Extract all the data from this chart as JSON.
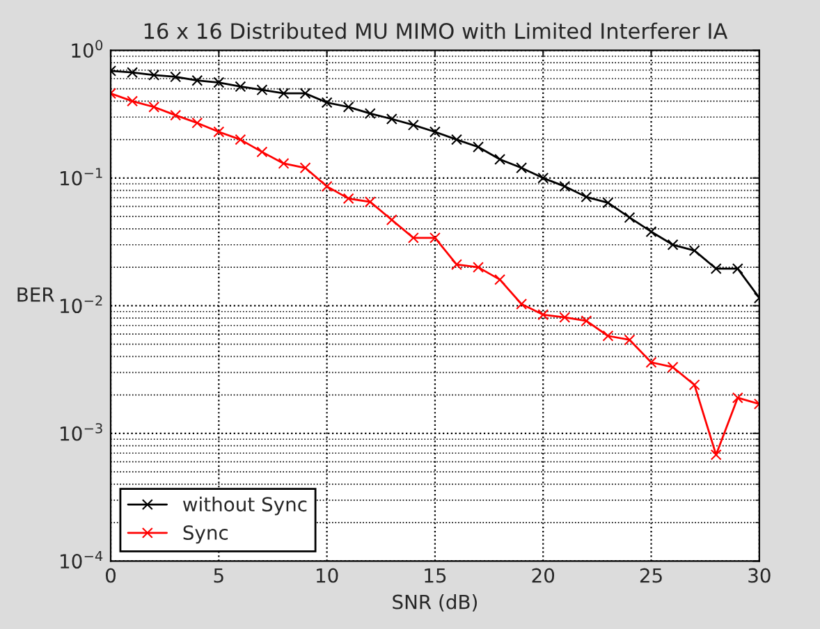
{
  "chart_data": {
    "type": "line",
    "title": "16 x 16 Distributed MU MIMO with Limited Interferer IA",
    "xlabel": "SNR (dB)",
    "ylabel": "BER",
    "log": "y",
    "grid": true,
    "legend": "bottom left",
    "marker": "cross",
    "line_style": "solid",
    "x": [
      0,
      1,
      2,
      3,
      4,
      5,
      6,
      7,
      8,
      9,
      10,
      11,
      12,
      13,
      14,
      15,
      16,
      17,
      18,
      19,
      20,
      21,
      22,
      23,
      24,
      25,
      26,
      27,
      28,
      29,
      30
    ],
    "xlim": [
      0,
      30
    ],
    "xticks": [
      0,
      5,
      10,
      15,
      20,
      25,
      30
    ],
    "ylim": [
      0.0001,
      1
    ],
    "yticks": [
      {
        "value": 0.0001,
        "label": "10$^{−4}$"
      },
      {
        "value": 0.001,
        "label": "10$^{−3}$"
      },
      {
        "value": 0.01,
        "label": "10$^{−2}$"
      },
      {
        "value": 0.1,
        "label": "10$^{−1}$"
      },
      {
        "value": 1,
        "label": "10$^{0}$"
      }
    ],
    "series": [
      {
        "name": "without Sync",
        "color": "#000000",
        "values": [
          0.69,
          0.67,
          0.64,
          0.62,
          0.58,
          0.56,
          0.52,
          0.49,
          0.46,
          0.46,
          0.39,
          0.36,
          0.32,
          0.29,
          0.26,
          0.23,
          0.2,
          0.175,
          0.14,
          0.12,
          0.1,
          0.086,
          0.071,
          0.064,
          0.049,
          0.038,
          0.03,
          0.027,
          0.0195,
          0.0195,
          0.0115
        ]
      },
      {
        "name": "Sync",
        "color": "#ff0000",
        "values": [
          0.46,
          0.4,
          0.36,
          0.31,
          0.27,
          0.23,
          0.2,
          0.16,
          0.13,
          0.12,
          0.086,
          0.069,
          0.065,
          0.047,
          0.034,
          0.034,
          0.021,
          0.02,
          0.016,
          0.0103,
          0.0085,
          0.0081,
          0.0076,
          0.0058,
          0.0054,
          0.0036,
          0.0033,
          0.0024,
          0.00068,
          0.0019,
          0.0017
        ]
      }
    ]
  }
}
